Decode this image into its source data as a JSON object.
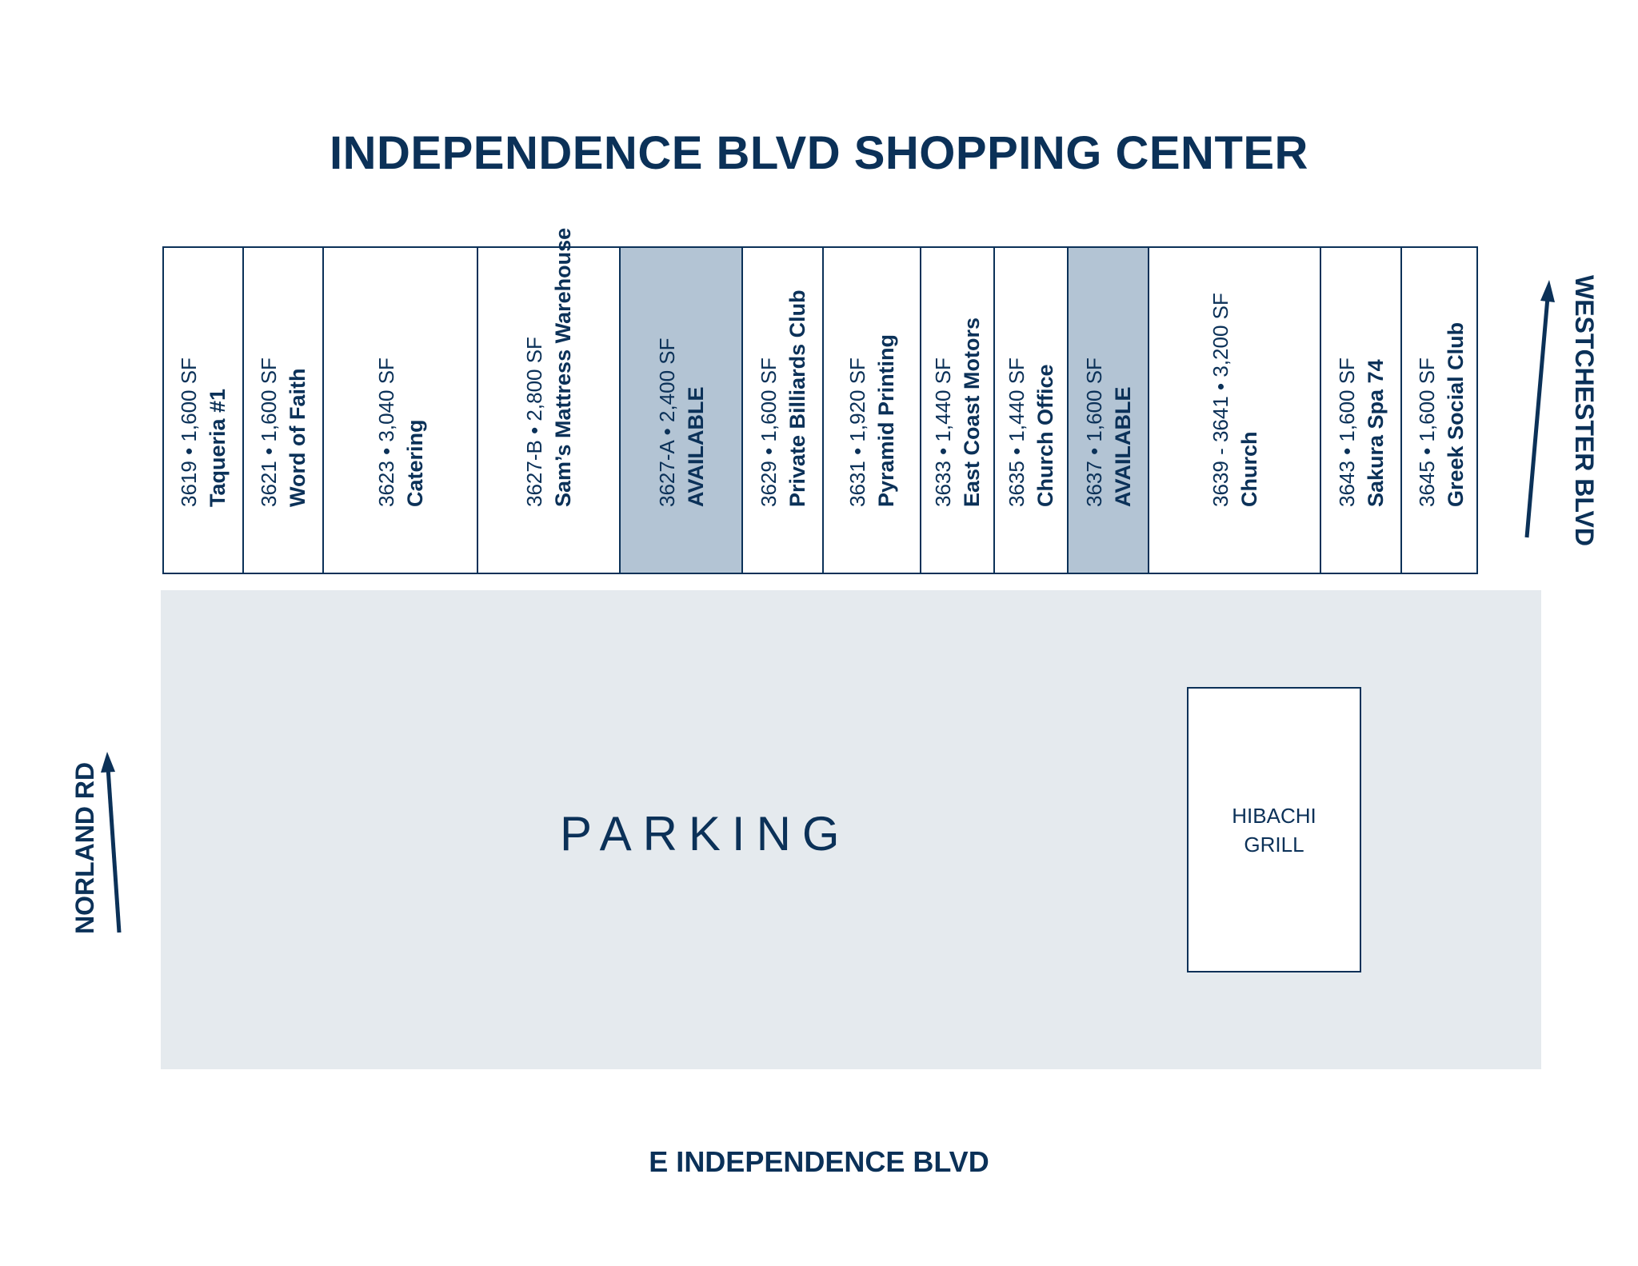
{
  "title": "INDEPENDENCE BLVD SHOPPING CENTER",
  "units": [
    {
      "number": "3619",
      "size": "1,600 SF",
      "tenant": "Taqueria #1",
      "available": false
    },
    {
      "number": "3621",
      "size": "1,600 SF",
      "tenant": "Word of Faith",
      "available": false
    },
    {
      "number": "3623",
      "size": "3,040 SF",
      "tenant": "Catering",
      "available": false
    },
    {
      "number": "3627-B",
      "size": "2,800 SF",
      "tenant": "Sam’s Mattress Warehouse",
      "available": false
    },
    {
      "number": "3627-A",
      "size": "2,400 SF",
      "tenant": "AVAILABLE",
      "available": true
    },
    {
      "number": "3629",
      "size": "1,600 SF",
      "tenant": "Private Billiards Club",
      "available": false
    },
    {
      "number": "3631",
      "size": "1,920 SF",
      "tenant": "Pyramid Printing",
      "available": false
    },
    {
      "number": "3633",
      "size": "1,440 SF",
      "tenant": "East Coast Motors",
      "available": false
    },
    {
      "number": "3635",
      "size": "1,440 SF",
      "tenant": "Church Office",
      "available": false
    },
    {
      "number": "3637",
      "size": "1,600 SF",
      "tenant": "AVAILABLE",
      "available": true
    },
    {
      "number": "3639 - 3641",
      "size": "3,200 SF",
      "tenant": "Church",
      "available": false
    },
    {
      "number": "3643",
      "size": "1,600 SF",
      "tenant": "Sakura Spa 74",
      "available": false
    },
    {
      "number": "3645",
      "size": "1,600 SF",
      "tenant": "Greek Social Club",
      "available": false
    }
  ],
  "separator": "•",
  "parking_label": "PARKING",
  "outparcel_label": "HIBACHI GRILL",
  "roads": {
    "bottom": "E INDEPENDENCE BLVD",
    "left": "NORLAND RD",
    "right": "WESTCHESTER BLVD"
  },
  "colors": {
    "navy": "#0b3158",
    "available_fill": "#b3c4d4",
    "parking_fill": "#e5eaee"
  }
}
